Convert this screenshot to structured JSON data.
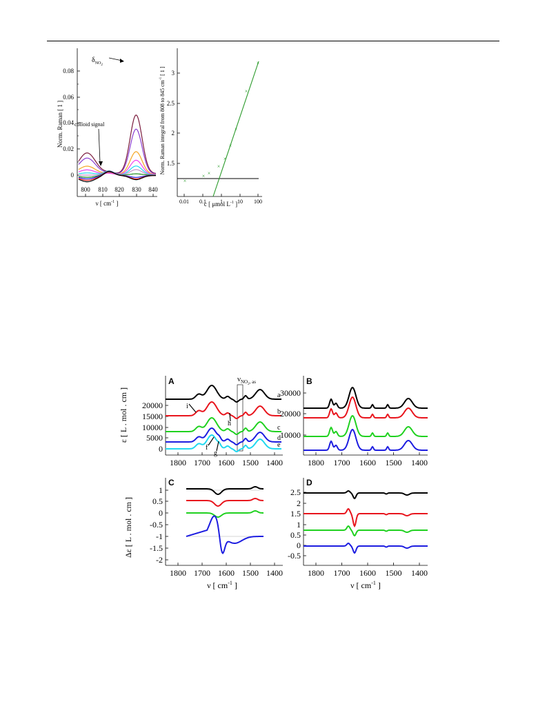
{
  "fig1": {
    "left": {
      "ylabel": "Norm. Raman [ 1 ]",
      "xlabel_main": "ν [ cm",
      "xlabel_sup": "-1",
      "xlabel_end": " ]",
      "yticks": [
        "0",
        "0.02",
        "0.04",
        "0.06",
        "0.08"
      ],
      "xticks": [
        "800",
        "810",
        "820",
        "830",
        "840"
      ],
      "annotation_delta": "δ",
      "annotation_delta_sub": "NO",
      "annotation_delta_sub2": "2",
      "annotation_colloid": "colloid signal"
    },
    "right": {
      "ylabel_main": "Norm. Raman integral from 808 to 845 cm",
      "ylabel_sup": "-1",
      "ylabel_end": " [ 1 ]",
      "xlabel_main": "c [ μmol L",
      "xlabel_sup": "-1",
      "xlabel_end": " ]",
      "yticks": [
        "1.5",
        "2",
        "2.5",
        "3"
      ],
      "xticks": [
        "0.01",
        "0.1",
        "1",
        "10",
        "100"
      ]
    }
  },
  "fig2": {
    "A": {
      "label": "A",
      "ylabel": "ε [ L . mol   . cm   ]",
      "yticks": [
        "0",
        "5000",
        "10000",
        "15000",
        "20000"
      ],
      "xticks": [
        "1800",
        "1700",
        "1600",
        "1500",
        "1400"
      ],
      "annot_nu": "ν",
      "annot_nu_sub": "NO",
      "annot_nu_sub2": "2",
      "annot_nu_sub3": ", as",
      "trace_labels": [
        "a",
        "b",
        "c",
        "d",
        "e"
      ],
      "point_labels": [
        "i",
        "h",
        "f",
        "g"
      ]
    },
    "B": {
      "label": "B",
      "yticks": [
        "10000",
        "20000",
        "30000"
      ],
      "xticks": [
        "1800",
        "1700",
        "1600",
        "1500",
        "1400"
      ]
    },
    "C": {
      "label": "C",
      "ylabel": "Δε [ L . mol   . cm   ]",
      "yticks": [
        "1",
        "0.5",
        "0",
        "-0.5",
        "-1",
        "-1.5",
        "-2"
      ],
      "xticks": [
        "1800",
        "1700",
        "1600",
        "1500",
        "1400"
      ],
      "xlabel_main": "ν [ cm",
      "xlabel_sup": "-1",
      "xlabel_end": " ]"
    },
    "D": {
      "label": "D",
      "yticks": [
        "2.5",
        "2",
        "1.5",
        "1",
        "0.5",
        "0",
        "-0.5"
      ],
      "xticks": [
        "1800",
        "1700",
        "1600",
        "1500",
        "1400"
      ],
      "xlabel_main": "ν [ cm",
      "xlabel_sup": "-1",
      "xlabel_end": " ]"
    }
  },
  "colors": {
    "black": "#000000",
    "red": "#e8141c",
    "green": "#1fd11f",
    "blue": "#1c1ce0",
    "cyan": "#20d8f0",
    "purple": "#8a3cd0",
    "maroon": "#7a1a3c",
    "orange": "#f5a623",
    "magenta": "#f040f0",
    "mauve": "#c090c8",
    "darkgreen": "#1e8c1e",
    "plotgreen": "#2a9a2a"
  }
}
